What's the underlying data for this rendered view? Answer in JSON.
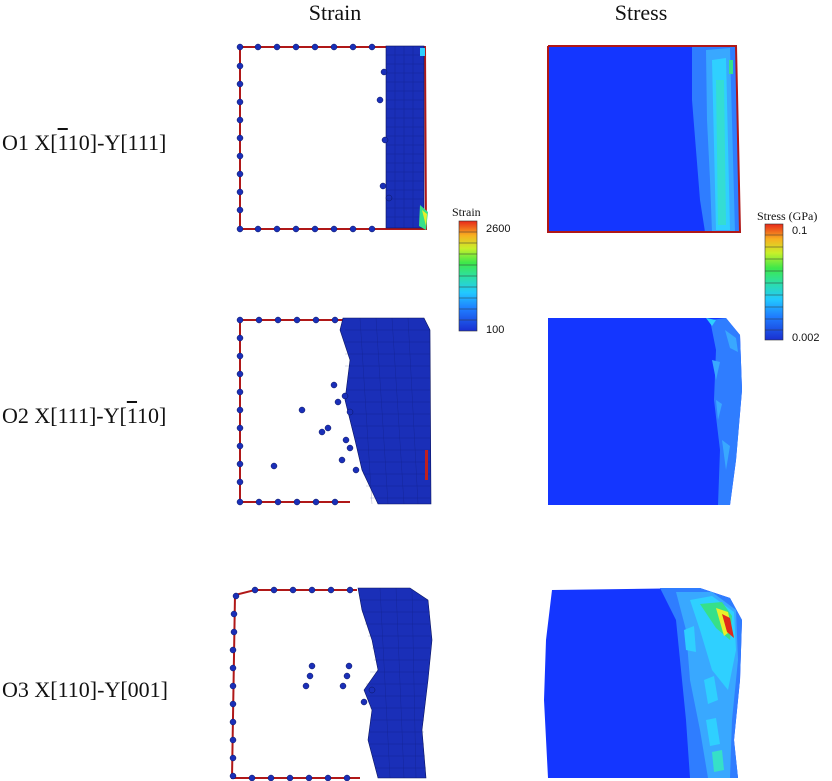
{
  "columns": {
    "strain": "Strain",
    "stress": "Stress"
  },
  "rows": [
    {
      "label_pre": "O1 X[",
      "label_ov1": "1",
      "label_mid": "10]-Y[",
      "label_ov2": "",
      "label_post": "111]"
    },
    {
      "label_pre": "O2 X[111]-Y[",
      "label_ov1": "1",
      "label_mid": "10]",
      "label_ov2": "",
      "label_post": ""
    },
    {
      "label_pre": "O3 X[110]-Y[001]",
      "label_ov1": "",
      "label_mid": "",
      "label_ov2": "",
      "label_post": ""
    }
  ],
  "strain_colorbar": {
    "title": "Strain",
    "max_label": "2600",
    "min_label": "100"
  },
  "stress_colorbar": {
    "title": "Stress (GPa)",
    "max_label": "0.1",
    "min_label": "0.002"
  },
  "colors": {
    "atom": "#1a2fb8",
    "atom_edge": "#0a1460",
    "boundary": "#b01818",
    "field_bg": "#1436ff",
    "field_light": "#2f7dff",
    "field_cyan": "#2fd0ff",
    "field_green": "#36e08a",
    "field_yellow": "#e8f02a",
    "field_red": "#e02a1a"
  }
}
